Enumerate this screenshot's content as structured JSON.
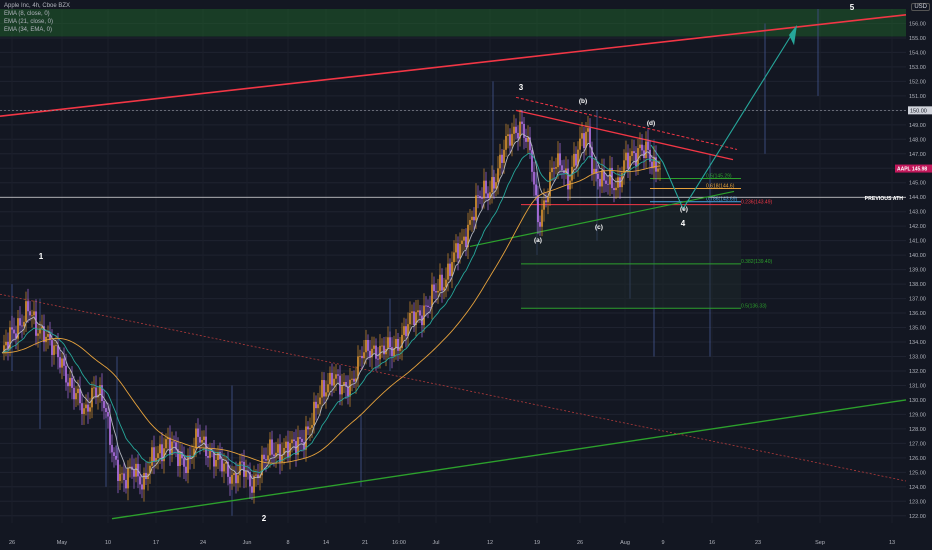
{
  "header": {
    "symbol_line": "Apple Inc, 4h, Cboe BZX",
    "ema_lines": [
      "EMA (8, close, 0)",
      "EMA (21, close, 0)",
      "EMA (34, EMA, 0)"
    ],
    "currency": "USD"
  },
  "colors": {
    "background": "#131722",
    "zone": "#1f5d2a",
    "up": "#f0a030",
    "down": "#c77dff",
    "ema8": "#b2b5be",
    "ema21": "#26a69a",
    "ema34": "#e6a23c",
    "resistance": "#f23645",
    "support": "#2ca02c",
    "projection": "#26a69a"
  },
  "chart_data": {
    "type": "candlestick",
    "y_axis": {
      "min": 121.5,
      "max": 157.0,
      "ticks": [
        122,
        123,
        124,
        125,
        126,
        127,
        128,
        129,
        130,
        131,
        132,
        133,
        134,
        135,
        136,
        137,
        138,
        139,
        140,
        141,
        142,
        143,
        144,
        145,
        146,
        147,
        148,
        149,
        150,
        151,
        152,
        153,
        154,
        155,
        156
      ]
    },
    "x_axis": {
      "ticks": [
        "26",
        "May",
        "10",
        "17",
        "24",
        "Jun",
        "8",
        "14",
        "21",
        "16:00",
        "Jul",
        "12",
        "19",
        "26",
        "Aug",
        "9",
        "16",
        "23",
        "Sep",
        "13"
      ]
    },
    "price_labels": {
      "last": "145.98",
      "last_tag": "AAPL",
      "highlight": "150.00"
    },
    "previous_ath": {
      "label": "PREVIOUS ATH",
      "value": 144.0
    },
    "wave_labels": [
      "1",
      "2",
      "3",
      "4",
      "5",
      "(a)",
      "(b)",
      "(c)",
      "(d)",
      "(e)"
    ],
    "fib_levels": [
      {
        "label": "0.5(145.29)",
        "value": 145.29
      },
      {
        "label": "0.618(144.6)",
        "value": 144.6
      },
      {
        "label": "0.786(143.69)",
        "value": 143.69
      },
      {
        "label": "0.236(143.49)",
        "value": 143.49
      },
      {
        "label": "0.382(139.40)",
        "value": 139.4
      },
      {
        "label": "0.5(136.33)",
        "value": 136.33
      }
    ],
    "target_zone": {
      "low": 155.1,
      "high": 157.0
    },
    "series": [
      {
        "name": "EMA (8, close, 0)"
      },
      {
        "name": "EMA (21, close, 0)"
      },
      {
        "name": "EMA (34, EMA, 0)"
      }
    ],
    "path": [
      {
        "i": 0,
        "v": 133.0
      },
      {
        "i": 5,
        "v": 134.5
      },
      {
        "i": 9,
        "v": 135.5
      },
      {
        "i": 13,
        "v": 136.2
      },
      {
        "i": 17,
        "v": 134.8
      },
      {
        "i": 21,
        "v": 135.0
      },
      {
        "i": 26,
        "v": 133.2
      },
      {
        "i": 31,
        "v": 132.3
      },
      {
        "i": 36,
        "v": 130.5
      },
      {
        "i": 41,
        "v": 129.0
      },
      {
        "i": 46,
        "v": 131.0
      },
      {
        "i": 51,
        "v": 129.5
      },
      {
        "i": 56,
        "v": 126.2
      },
      {
        "i": 61,
        "v": 124.0
      },
      {
        "i": 66,
        "v": 125.5
      },
      {
        "i": 71,
        "v": 124.2
      },
      {
        "i": 76,
        "v": 126.0
      },
      {
        "i": 82,
        "v": 127.2
      },
      {
        "i": 88,
        "v": 126.0
      },
      {
        "i": 93,
        "v": 125.8
      },
      {
        "i": 98,
        "v": 127.3
      },
      {
        "i": 104,
        "v": 126.5
      },
      {
        "i": 110,
        "v": 125.3
      },
      {
        "i": 115,
        "v": 124.8
      },
      {
        "i": 120,
        "v": 125.3
      },
      {
        "i": 124,
        "v": 124.0
      },
      {
        "i": 129,
        "v": 125.5
      },
      {
        "i": 134,
        "v": 126.2
      },
      {
        "i": 140,
        "v": 126.7
      },
      {
        "i": 146,
        "v": 126.6
      },
      {
        "i": 151,
        "v": 127.6
      },
      {
        "i": 156,
        "v": 128.8
      },
      {
        "i": 160,
        "v": 130.6
      },
      {
        "i": 165,
        "v": 131.8
      },
      {
        "i": 170,
        "v": 130.5
      },
      {
        "i": 175,
        "v": 131.5
      },
      {
        "i": 180,
        "v": 133.0
      },
      {
        "i": 185,
        "v": 133.6
      },
      {
        "i": 190,
        "v": 133.4
      },
      {
        "i": 195,
        "v": 133.4
      },
      {
        "i": 200,
        "v": 134.5
      },
      {
        "i": 205,
        "v": 135.5
      },
      {
        "i": 210,
        "v": 136.2
      },
      {
        "i": 215,
        "v": 137.0
      },
      {
        "i": 220,
        "v": 138.0
      },
      {
        "i": 225,
        "v": 139.7
      },
      {
        "i": 230,
        "v": 140.5
      },
      {
        "i": 235,
        "v": 143.0
      },
      {
        "i": 238,
        "v": 143.8
      },
      {
        "i": 243,
        "v": 144.3
      },
      {
        "i": 248,
        "v": 146.0
      },
      {
        "i": 252,
        "v": 147.5
      },
      {
        "i": 256,
        "v": 148.6
      },
      {
        "i": 259,
        "v": 149.2
      },
      {
        "i": 262,
        "v": 148.0
      },
      {
        "i": 265,
        "v": 146.0
      },
      {
        "i": 268,
        "v": 142.5
      },
      {
        "i": 272,
        "v": 144.0
      },
      {
        "i": 276,
        "v": 146.0
      },
      {
        "i": 280,
        "v": 146.5
      },
      {
        "i": 283,
        "v": 145.2
      },
      {
        "i": 287,
        "v": 146.5
      },
      {
        "i": 290,
        "v": 148.0
      },
      {
        "i": 293,
        "v": 148.8
      },
      {
        "i": 296,
        "v": 145.5
      },
      {
        "i": 300,
        "v": 144.8
      },
      {
        "i": 304,
        "v": 145.5
      },
      {
        "i": 308,
        "v": 144.7
      },
      {
        "i": 311,
        "v": 146.0
      },
      {
        "i": 315,
        "v": 147.0
      },
      {
        "i": 319,
        "v": 147.5
      },
      {
        "i": 322,
        "v": 147.0
      },
      {
        "i": 325,
        "v": 146.2
      },
      {
        "i": 327,
        "v": 145.98
      }
    ]
  }
}
